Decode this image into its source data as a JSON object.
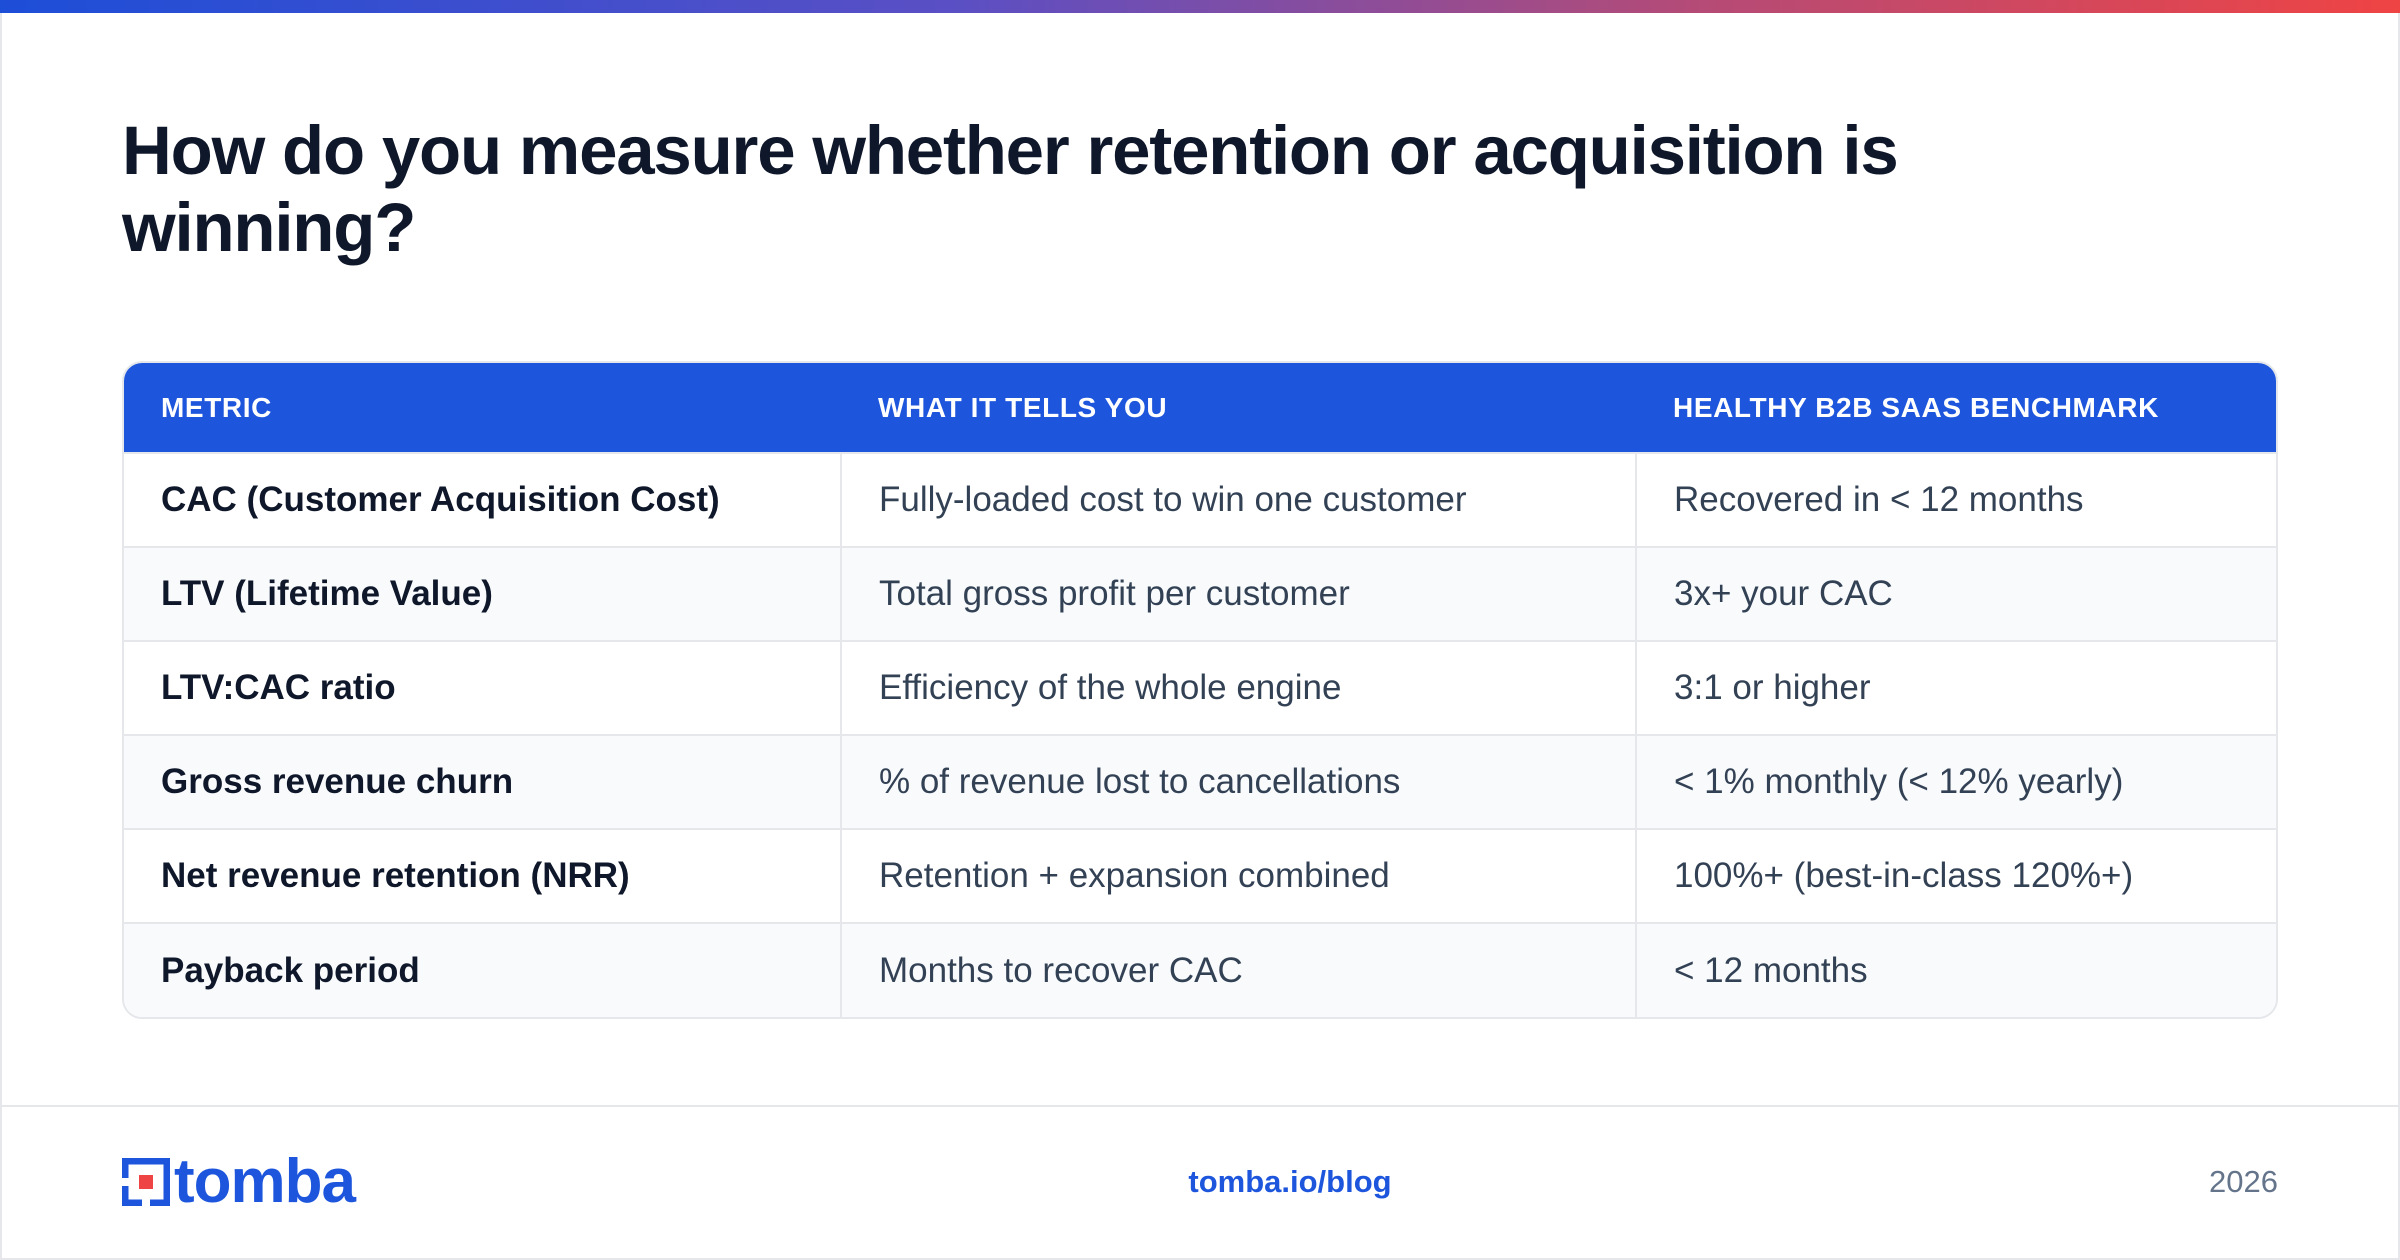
{
  "title": "How do you measure whether retention or acquisition is winning?",
  "table": {
    "headers": [
      "METRIC",
      "WHAT IT TELLS YOU",
      "HEALTHY B2B SAAS BENCHMARK"
    ],
    "rows": [
      [
        "CAC (Customer Acquisition Cost)",
        "Fully-loaded cost to win one customer",
        "Recovered in < 12 months"
      ],
      [
        "LTV (Lifetime Value)",
        "Total gross profit per customer",
        "3x+ your CAC"
      ],
      [
        "LTV:CAC ratio",
        "Efficiency of the whole engine",
        "3:1 or higher"
      ],
      [
        "Gross revenue churn",
        "% of revenue lost to cancellations",
        "< 1% monthly (< 12% yearly)"
      ],
      [
        "Net revenue retention (NRR)",
        "Retention + expansion combined",
        "100%+ (best-in-class 120%+)"
      ],
      [
        "Payback period",
        "Months to recover CAC",
        "< 12 months"
      ]
    ]
  },
  "footer": {
    "logo_text": "tomba",
    "link": "tomba.io/blog",
    "year": "2026"
  },
  "colors": {
    "accent": "#1d56dc",
    "logo_red": "#ef4444",
    "gradient": [
      "#1d4ed8",
      "#ef4444"
    ]
  },
  "icons": {
    "logo": "tomba-logo-mark-icon"
  }
}
